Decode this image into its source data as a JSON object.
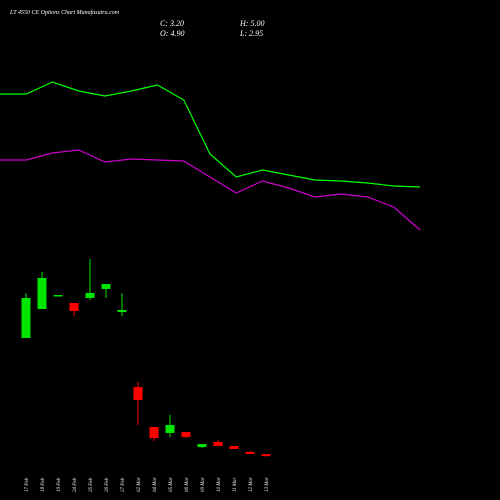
{
  "chart_data": [
    {
      "type": "candlestick",
      "title": "LT 4550 CE Options Chart Munafasutra.com",
      "info": [
        "C: 3.20",
        "O: 4.90",
        "H: 5.00",
        "L: 2.95"
      ],
      "categories": [
        "17 Feb",
        "18 Feb",
        "19 Feb",
        "24 Feb",
        "25 Feb",
        "26 Feb",
        "27 Feb",
        "02 Mar",
        "04 Mar",
        "05 Mar",
        "06 Mar",
        "09 Mar",
        "10 Mar",
        "11 Mar",
        "12 Mar",
        "13 Mar"
      ],
      "open": [
        101.7,
        125.8,
        137.5,
        130.8,
        135,
        142.5,
        123.3,
        60.8,
        27.5,
        22.5,
        23.3,
        10.8,
        15,
        11.7,
        6.7,
        4.9
      ],
      "high": [
        139,
        156.7,
        137.5,
        130.8,
        167.5,
        146.7,
        139,
        65,
        27.5,
        37.5,
        23.3,
        13.3,
        16.7,
        11.7,
        7.5,
        5
      ],
      "low": [
        101.7,
        125.8,
        137.5,
        120,
        133.3,
        135,
        120,
        29.2,
        15.8,
        19.2,
        18.3,
        10,
        11.7,
        9.2,
        5,
        2.95
      ],
      "close": [
        135,
        151.7,
        137.5,
        124.2,
        139.2,
        146.7,
        125,
        50,
        18.3,
        29.2,
        19.2,
        13.3,
        11.7,
        9.2,
        5,
        3.2
      ],
      "up_color": "#00e600",
      "down_color": "#ff0000",
      "ylim": [
        0,
        170
      ]
    },
    {
      "type": "line",
      "ylim": [
        0,
        100
      ],
      "series": [
        {
          "color": "#00ff00",
          "values": [
            78,
            78,
            84,
            79.5,
            77,
            79.5,
            82.5,
            75,
            48,
            36.5,
            40,
            37.5,
            35,
            34.5,
            33.5,
            32,
            31.5
          ]
        },
        {
          "color": "#cc00cc",
          "values": [
            45,
            45,
            48.5,
            50,
            44,
            45.5,
            45,
            44.5,
            36.5,
            28.5,
            34.5,
            31,
            26.5,
            28,
            26.5,
            21.5,
            10
          ]
        }
      ]
    }
  ]
}
